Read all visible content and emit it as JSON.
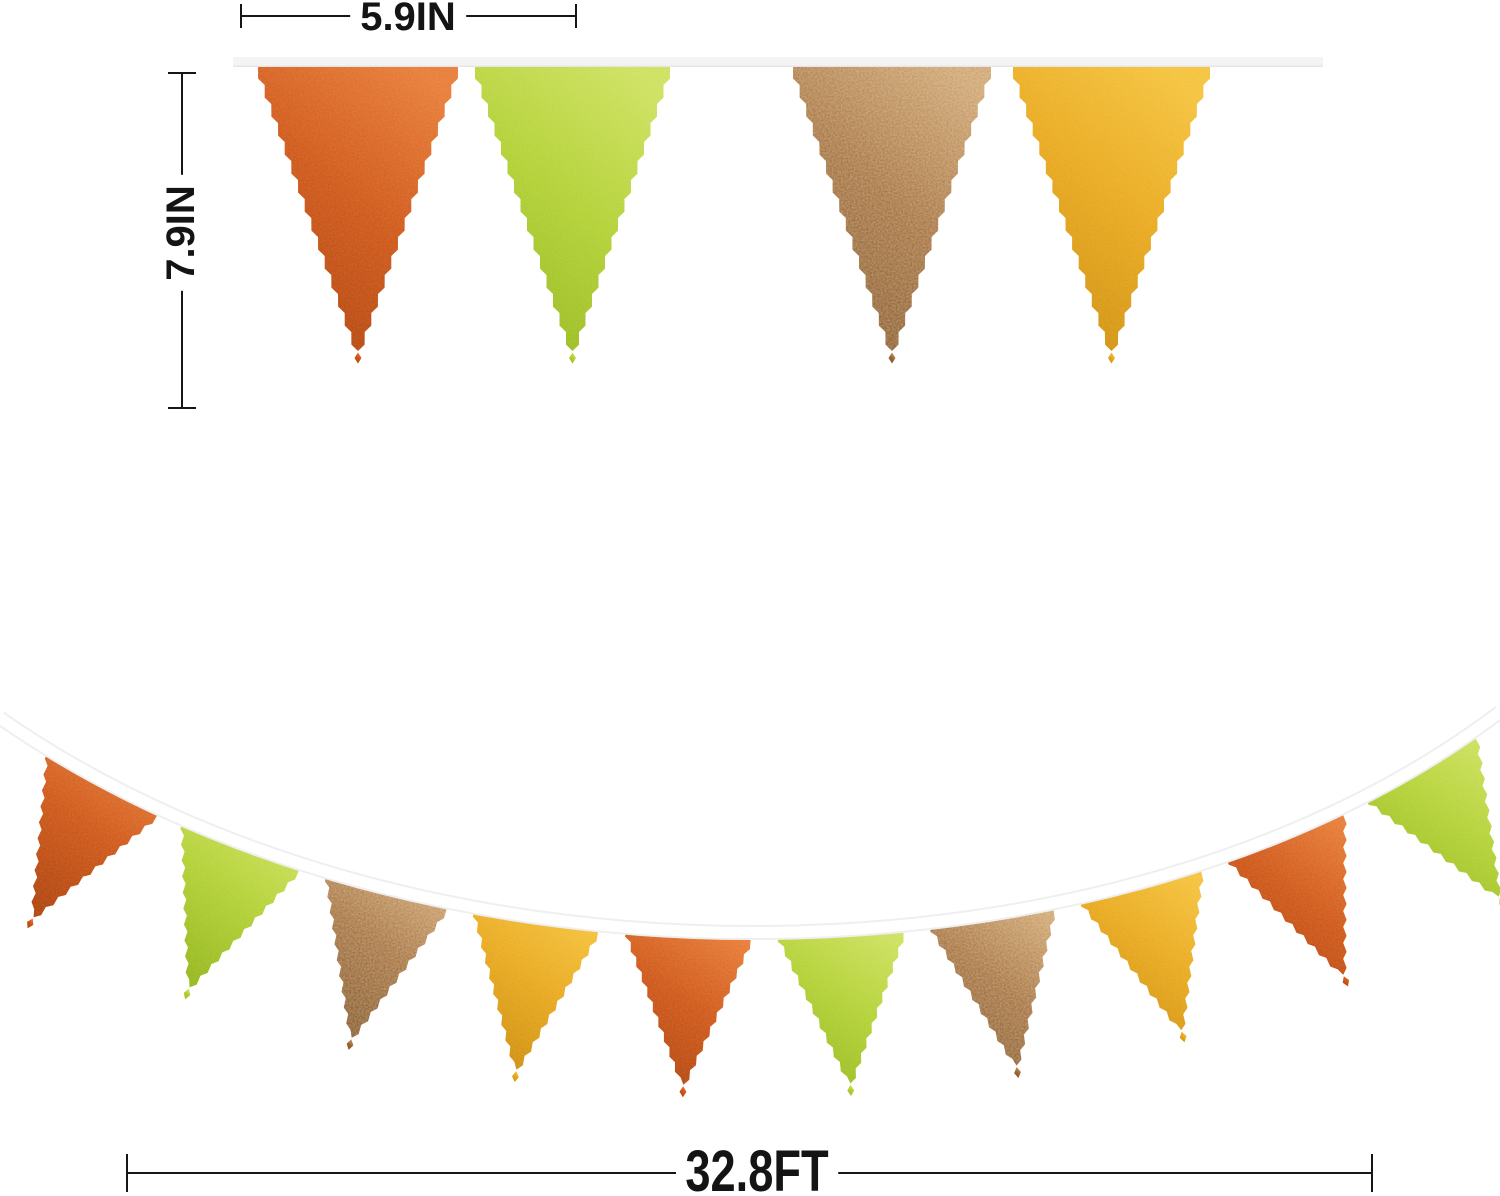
{
  "annotations": {
    "flag_width": "5.9IN",
    "flag_height": "7.9IN",
    "banner_length": "32.8FT"
  },
  "colors": {
    "orange": {
      "light": "#e87a35",
      "main": "#cf5516",
      "dark": "#b04009"
    },
    "green": {
      "light": "#cde25e",
      "main": "#b1d233",
      "dark": "#94b81a"
    },
    "bronze": {
      "light": "#c99e6c",
      "main": "#9d6a3a",
      "dark": "#7c4f24"
    },
    "gold": {
      "light": "#f5c33a",
      "main": "#e9a81b",
      "dark": "#cc8c09"
    }
  },
  "top_banner": {
    "ribbon_color": "#f4f4f4",
    "flags": [
      "orange",
      "green",
      "bronze",
      "gold"
    ]
  },
  "bottom_banner": {
    "ribbon_color": "#ffffff",
    "flags": [
      "orange",
      "green",
      "bronze",
      "gold",
      "orange",
      "green",
      "bronze",
      "gold",
      "orange",
      "green"
    ]
  }
}
